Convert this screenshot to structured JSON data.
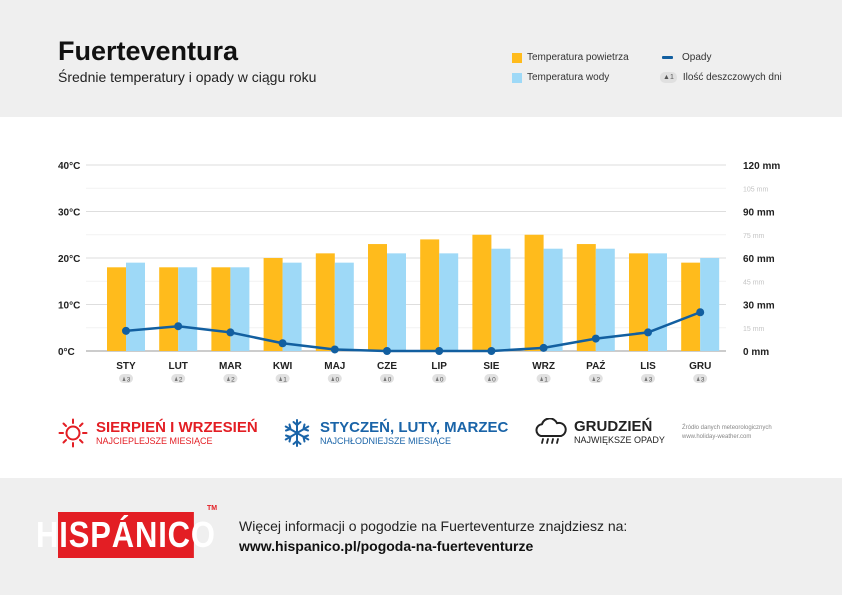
{
  "header": {
    "title": "Fuerteventura",
    "subtitle": "Średnie temperatury i opady w ciągu roku"
  },
  "legend": {
    "air_temp": "Temperatura powietrza",
    "water_temp": "Temperatura wody",
    "rain": "Opady",
    "rainy_days": "Ilość deszczowych dni",
    "rainy_days_badge": "1"
  },
  "colors": {
    "air": "#ffbb1c",
    "water": "#9ed9f7",
    "rain": "#125fa0",
    "hot": "#e31e24",
    "cold": "#1a64a8",
    "wet": "#222222"
  },
  "chart_data": {
    "type": "bar",
    "categories": [
      "STY",
      "LUT",
      "MAR",
      "KWI",
      "MAJ",
      "CZE",
      "LIP",
      "SIE",
      "WRZ",
      "PAŹ",
      "LIS",
      "GRU"
    ],
    "series": [
      {
        "name": "Temperatura powietrza",
        "unit": "°C",
        "values": [
          18,
          18,
          18,
          20,
          21,
          23,
          24,
          25,
          25,
          23,
          21,
          19
        ]
      },
      {
        "name": "Temperatura wody",
        "unit": "°C",
        "values": [
          19,
          18,
          18,
          19,
          19,
          21,
          21,
          22,
          22,
          22,
          21,
          20
        ]
      },
      {
        "name": "Opady",
        "type": "line",
        "unit": "mm",
        "values": [
          13,
          16,
          12,
          5,
          1,
          0,
          0,
          0,
          2,
          8,
          12,
          25
        ]
      }
    ],
    "rainy_days": [
      3,
      2,
      2,
      1,
      0,
      0,
      0,
      0,
      1,
      2,
      3,
      3
    ],
    "y_left": {
      "ticks": [
        "0°C",
        "10°C",
        "20°C",
        "30°C",
        "40°C"
      ],
      "ylim": [
        0,
        40
      ]
    },
    "y_right": {
      "ticks": [
        "0 mm",
        "30 mm",
        "60 mm",
        "90 mm",
        "120 mm"
      ],
      "minor_ticks": [
        "15 mm",
        "45 mm",
        "75 mm",
        "105 mm"
      ],
      "ylim": [
        0,
        120
      ]
    }
  },
  "highlights": [
    {
      "title": "SIERPIEŃ I WRZESIEŃ",
      "subtitle": "NAJCIEPLEJSZE MIESIĄCE"
    },
    {
      "title": "STYCZEŃ, LUTY, MARZEC",
      "subtitle": "NAJCHŁODNIEJSZE MIESIĄCE"
    },
    {
      "title": "GRUDZIEŃ",
      "subtitle": "NAJWIĘKSZE OPADY"
    }
  ],
  "source": {
    "line1": "Źródło danych meteorologicznych",
    "line2": "www.holiday-weather.com"
  },
  "footer": {
    "logo": "HISPÁNICO",
    "tm": "TM",
    "text": "Więcej informacji o pogodzie na Fuerteventurze znajdziesz na:",
    "url": "www.hispanico.pl/pogoda-na-fuerteventurze"
  }
}
